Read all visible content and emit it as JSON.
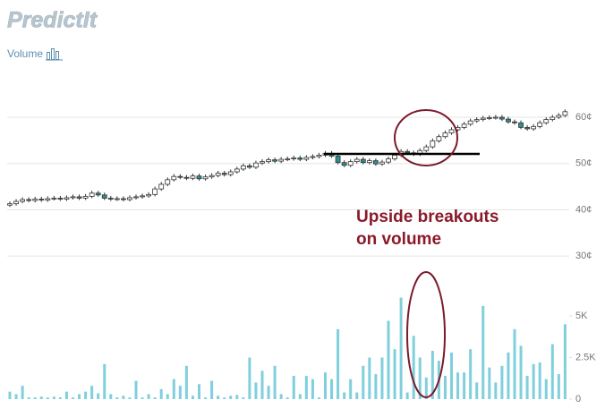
{
  "header": {
    "logo": "PredictIt",
    "toggle": "Volume"
  },
  "chart_data": [
    {
      "type": "candlestick",
      "annotation": [
        "Upside breakouts",
        "on volume"
      ],
      "up_color": "#ffffff",
      "down_color": "#2e8f8f",
      "outline_color": "#333333",
      "ylim": [
        27,
        66
      ],
      "yticks": [
        {
          "value": 30,
          "label": "30¢"
        },
        {
          "value": 40,
          "label": "40¢"
        },
        {
          "value": 50,
          "label": "50¢"
        },
        {
          "value": 60,
          "label": "60¢"
        }
      ],
      "grid": true,
      "open": [
        41.0,
        41.3,
        41.8,
        42.2,
        42.0,
        42.3,
        42.1,
        42.4,
        42.5,
        42.3,
        42.6,
        42.8,
        42.5,
        42.9,
        43.6,
        43.2,
        42.5,
        42.3,
        42.4,
        42.2,
        42.6,
        42.8,
        43.0,
        43.3,
        44.5,
        45.5,
        46.5,
        47.2,
        47.0,
        46.8,
        47.3,
        46.7,
        47.1,
        47.4,
        47.9,
        47.6,
        48.2,
        48.8,
        49.5,
        49.2,
        50.1,
        50.4,
        50.8,
        50.5,
        50.9,
        51.0,
        51.2,
        50.9,
        51.3,
        51.5,
        51.8,
        52.2,
        51.6,
        50.2,
        49.6,
        50.4,
        50.9,
        50.2,
        50.6,
        49.9,
        50.3,
        51.0,
        51.8,
        52.6,
        52.3,
        52.0,
        52.8,
        53.6,
        54.9,
        55.8,
        56.6,
        57.3,
        57.8,
        58.5,
        59.2,
        59.5,
        59.8,
        59.9,
        60.0,
        59.6,
        59.0,
        58.8,
        57.8,
        57.5,
        58.0,
        58.8,
        59.5,
        60.0,
        60.4
      ],
      "high": [
        41.8,
        42.3,
        42.7,
        42.7,
        42.8,
        42.8,
        42.9,
        43.0,
        43.0,
        43.1,
        43.3,
        43.3,
        43.4,
        44.1,
        44.1,
        43.7,
        43.0,
        42.9,
        42.9,
        43.1,
        43.3,
        43.5,
        43.8,
        45.0,
        46.0,
        47.0,
        47.7,
        47.7,
        47.5,
        47.8,
        47.8,
        47.6,
        47.9,
        48.4,
        48.4,
        48.7,
        49.3,
        50.0,
        50.0,
        50.6,
        50.9,
        51.3,
        51.3,
        51.4,
        51.5,
        51.7,
        51.7,
        51.8,
        52.0,
        52.3,
        52.7,
        52.7,
        52.1,
        50.7,
        50.9,
        51.4,
        51.4,
        51.1,
        51.1,
        50.8,
        51.5,
        52.3,
        53.1,
        53.1,
        52.8,
        53.3,
        54.1,
        55.4,
        56.3,
        57.1,
        57.8,
        58.3,
        59.0,
        59.7,
        60.0,
        60.3,
        60.4,
        60.5,
        60.5,
        60.1,
        59.5,
        59.3,
        58.3,
        58.5,
        59.3,
        60.0,
        60.5,
        60.9,
        61.7
      ],
      "low": [
        40.6,
        40.9,
        41.4,
        41.6,
        41.6,
        41.7,
        41.7,
        42.0,
        41.9,
        41.9,
        42.2,
        42.1,
        42.1,
        42.5,
        42.8,
        42.1,
        41.9,
        41.9,
        41.8,
        41.8,
        42.2,
        42.4,
        42.6,
        42.9,
        44.1,
        45.1,
        46.1,
        46.6,
        46.4,
        46.4,
        46.3,
        46.3,
        46.7,
        47.0,
        47.2,
        47.2,
        47.8,
        48.4,
        48.8,
        48.8,
        49.7,
        50.0,
        50.1,
        50.1,
        50.5,
        50.6,
        50.5,
        50.5,
        50.9,
        51.1,
        51.4,
        51.2,
        49.8,
        49.2,
        49.2,
        50.0,
        49.8,
        49.8,
        49.5,
        49.5,
        49.9,
        50.6,
        51.4,
        51.9,
        51.6,
        51.6,
        52.4,
        53.2,
        54.5,
        55.4,
        56.2,
        56.9,
        57.4,
        58.1,
        58.8,
        59.1,
        59.4,
        59.5,
        59.2,
        58.6,
        58.4,
        57.4,
        57.1,
        57.1,
        57.6,
        58.4,
        59.1,
        59.6,
        60.0
      ],
      "close": [
        41.3,
        41.8,
        42.2,
        42.0,
        42.3,
        42.1,
        42.4,
        42.5,
        42.3,
        42.6,
        42.8,
        42.5,
        42.9,
        43.6,
        43.2,
        42.5,
        42.3,
        42.4,
        42.2,
        42.6,
        42.8,
        43.0,
        43.3,
        44.5,
        45.5,
        46.5,
        47.2,
        47.0,
        46.8,
        47.3,
        46.7,
        47.1,
        47.4,
        47.9,
        47.6,
        48.2,
        48.8,
        49.5,
        49.2,
        50.1,
        50.4,
        50.8,
        50.5,
        50.9,
        51.0,
        51.2,
        50.9,
        51.3,
        51.5,
        51.8,
        52.2,
        51.6,
        50.2,
        49.6,
        50.4,
        50.9,
        50.2,
        50.6,
        49.9,
        50.3,
        51.0,
        51.8,
        52.6,
        52.3,
        52.0,
        52.8,
        53.6,
        54.9,
        55.8,
        56.6,
        57.3,
        57.8,
        58.5,
        59.2,
        59.5,
        59.8,
        59.9,
        60.0,
        59.6,
        59.0,
        58.8,
        57.8,
        57.5,
        58.0,
        58.8,
        59.5,
        60.0,
        60.4,
        61.2
      ]
    },
    {
      "type": "bar",
      "color": "#7fcfdc",
      "ylim": [
        0,
        7300
      ],
      "yticks": [
        0,
        {
          "value": 2500,
          "label": "2.5K"
        },
        {
          "value": 5000,
          "label": "5K"
        }
      ],
      "values": [
        450,
        300,
        800,
        100,
        100,
        150,
        100,
        150,
        100,
        450,
        100,
        300,
        450,
        800,
        350,
        2100,
        300,
        100,
        200,
        100,
        1100,
        100,
        300,
        100,
        600,
        300,
        1200,
        800,
        2000,
        200,
        900,
        100,
        1100,
        200,
        100,
        200,
        250,
        100,
        2500,
        1000,
        1700,
        800,
        2000,
        300,
        100,
        1400,
        300,
        1400,
        1200,
        100,
        1600,
        1200,
        4200,
        400,
        1200,
        400,
        2000,
        2500,
        1500,
        2500,
        4700,
        3000,
        6100,
        400,
        3800,
        2500,
        1300,
        2900,
        2300,
        1400,
        2800,
        1600,
        1600,
        3000,
        1000,
        5600,
        1900,
        1000,
        2000,
        2800,
        4200,
        3200,
        1400,
        2100,
        2200,
        1200,
        3300,
        1500,
        4500
      ]
    }
  ]
}
